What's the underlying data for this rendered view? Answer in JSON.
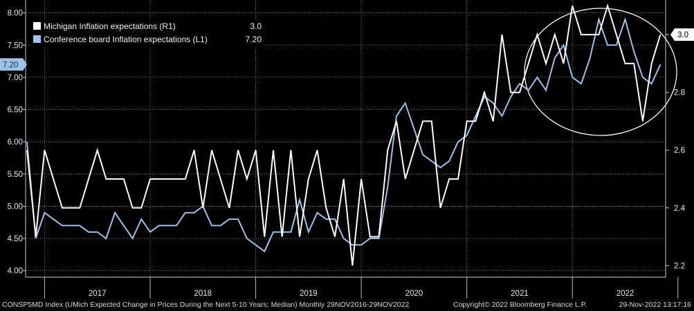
{
  "footer": {
    "ticker": "CONSP5MD Index (UMich Expected Change in Prices During the Next 5-10 Years: Median)  Monthly 29NOV2016-29NOV2022",
    "copyright": "Copyright© 2022 Bloomberg Finance L.P.",
    "timestamp": "29-Nov-2022 13:17:16"
  },
  "colors": {
    "background": "#000000",
    "michigan": "#ffffff",
    "conference": "#9cc3ea",
    "grid": "#9a9a9a",
    "axis_tag_left": "#9cc3ea",
    "axis_tag_right": "#ffffff"
  },
  "chart_data": {
    "type": "line",
    "frequency": "monthly",
    "x_start": "2016-11",
    "x_end": "2022-11",
    "x_tick_labels": [
      "2017",
      "2018",
      "2019",
      "2020",
      "2021",
      "2022"
    ],
    "left_axis": {
      "ticks": [
        "4.00",
        "4.50",
        "5.00",
        "5.50",
        "6.00",
        "6.50",
        "7.00",
        "7.50",
        "8.00"
      ],
      "range": [
        3.9,
        8.2
      ],
      "last_value_label": "7.20"
    },
    "right_axis": {
      "ticks": [
        "2.2",
        "2.4",
        "2.6",
        "2.8",
        "3.0"
      ],
      "range": [
        2.16,
        3.12
      ],
      "last_value_label": "3.0"
    },
    "grid": true,
    "legend_position": "top-left",
    "annotation": "ellipse highlighting 2021-2022 peak",
    "series": [
      {
        "name": "Michigan Inflation expectations  (R1)",
        "legend_value": "3.0",
        "axis": "right",
        "color": "#ffffff",
        "values": [
          2.6,
          2.3,
          2.6,
          2.5,
          2.4,
          2.4,
          2.4,
          2.5,
          2.6,
          2.5,
          2.5,
          2.5,
          2.4,
          2.4,
          2.5,
          2.5,
          2.5,
          2.5,
          2.5,
          2.6,
          2.4,
          2.6,
          2.5,
          2.4,
          2.6,
          2.5,
          2.6,
          2.3,
          2.6,
          2.3,
          2.6,
          2.3,
          2.5,
          2.6,
          2.4,
          2.3,
          2.5,
          2.2,
          2.5,
          2.3,
          2.3,
          2.6,
          2.7,
          2.5,
          2.6,
          2.7,
          2.7,
          2.4,
          2.5,
          2.5,
          2.7,
          2.7,
          2.8,
          2.7,
          3.0,
          2.8,
          2.8,
          2.9,
          3.0,
          2.9,
          3.0,
          2.9,
          3.1,
          3.0,
          3.0,
          3.0,
          3.1,
          3.0,
          2.9,
          2.9,
          2.7,
          2.9,
          3.0
        ]
      },
      {
        "name": "Conference board Inflation expectations  (L1)",
        "legend_value": "7.20",
        "axis": "left",
        "color": "#9cc3ea",
        "values": [
          6.0,
          4.5,
          4.9,
          4.8,
          4.7,
          4.7,
          4.7,
          4.6,
          4.6,
          4.5,
          4.9,
          4.7,
          4.5,
          4.8,
          4.6,
          4.7,
          4.7,
          4.7,
          4.9,
          4.9,
          5.0,
          4.7,
          4.7,
          4.8,
          4.8,
          4.5,
          4.4,
          4.3,
          4.6,
          4.6,
          4.6,
          5.1,
          4.6,
          4.9,
          4.8,
          4.8,
          4.5,
          4.4,
          4.4,
          4.5,
          4.5,
          5.3,
          6.4,
          6.6,
          6.2,
          5.8,
          5.7,
          5.6,
          5.7,
          6.0,
          6.1,
          6.4,
          6.7,
          6.6,
          6.4,
          6.7,
          6.9,
          6.8,
          7.0,
          6.8,
          7.3,
          7.5,
          7.0,
          6.9,
          7.3,
          7.9,
          7.5,
          7.5,
          7.9,
          7.4,
          7.0,
          6.9,
          7.2
        ]
      }
    ]
  }
}
